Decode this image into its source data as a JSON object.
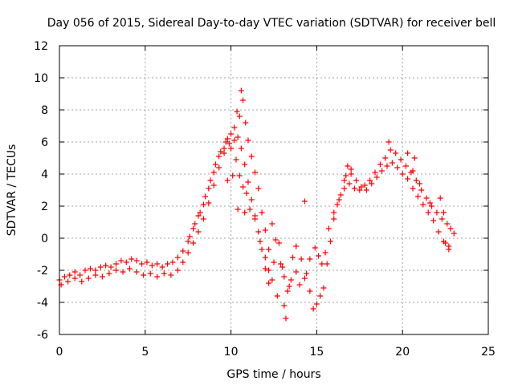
{
  "chart_data": {
    "type": "scatter",
    "title": "Day 056 of 2015, Sidereal Day-to-day VTEC variation (SDTVAR) for receiver bell",
    "xlabel": "GPS time / hours",
    "ylabel": "SDTVAR / TECUs",
    "xlim": [
      0,
      25
    ],
    "ylim": [
      -6,
      12
    ],
    "xticks": [
      0,
      5,
      10,
      15,
      20,
      25
    ],
    "xtick_labels": [
      "0",
      "5",
      "10",
      "15",
      "20",
      "25"
    ],
    "yticks": [
      -6,
      -4,
      -2,
      0,
      2,
      4,
      6,
      8,
      10,
      12
    ],
    "ytick_labels": [
      "-6",
      "-4",
      "-2",
      "0",
      "2",
      "4",
      "6",
      "8",
      "10",
      "12"
    ],
    "grid": true,
    "marker": "plus",
    "series": [
      {
        "name": "satellite track A",
        "color": "#ff0000",
        "points": [
          [
            0.0,
            -2.6
          ],
          [
            0.3,
            -2.4
          ],
          [
            0.6,
            -2.3
          ],
          [
            0.9,
            -2.1
          ],
          [
            1.2,
            -2.3
          ],
          [
            1.5,
            -2.0
          ],
          [
            1.8,
            -1.9
          ],
          [
            2.1,
            -2.0
          ],
          [
            2.4,
            -1.8
          ],
          [
            2.7,
            -1.7
          ],
          [
            3.0,
            -1.8
          ],
          [
            3.3,
            -1.6
          ],
          [
            3.6,
            -1.4
          ],
          [
            3.9,
            -1.5
          ],
          [
            4.2,
            -1.3
          ],
          [
            4.5,
            -1.4
          ],
          [
            4.8,
            -1.6
          ],
          [
            5.1,
            -1.5
          ],
          [
            5.4,
            -1.7
          ],
          [
            5.7,
            -1.6
          ],
          [
            6.0,
            -1.8
          ],
          [
            6.3,
            -1.6
          ],
          [
            6.6,
            -1.5
          ],
          [
            6.9,
            -1.2
          ],
          [
            7.2,
            -0.8
          ],
          [
            7.5,
            -0.2
          ],
          [
            7.8,
            0.6
          ],
          [
            8.1,
            1.4
          ],
          [
            8.4,
            2.1
          ],
          [
            8.7,
            3.1
          ],
          [
            9.0,
            4.1
          ],
          [
            9.3,
            5.1
          ],
          [
            9.6,
            5.6
          ],
          [
            9.9,
            5.9
          ],
          [
            10.2,
            6.1
          ],
          [
            10.4,
            6.3
          ],
          [
            10.6,
            5.6
          ],
          [
            10.8,
            4.6
          ],
          [
            11.0,
            3.5
          ],
          [
            11.2,
            2.4
          ],
          [
            11.4,
            1.4
          ],
          [
            11.6,
            0.4
          ],
          [
            11.8,
            -0.7
          ],
          [
            12.0,
            -1.9
          ],
          [
            12.2,
            -2.8
          ],
          [
            12.5,
            -1.5
          ],
          [
            12.8,
            -0.3
          ],
          [
            13.0,
            -1.8
          ],
          [
            13.1,
            -4.2
          ],
          [
            13.2,
            -5.0
          ],
          [
            13.4,
            -3.0
          ],
          [
            13.6,
            -1.2
          ],
          [
            13.8,
            -0.5
          ],
          [
            14.1,
            -1.3
          ],
          [
            14.4,
            -2.2
          ],
          [
            14.6,
            -3.3
          ],
          [
            14.8,
            -4.4
          ],
          [
            15.0,
            -4.1
          ],
          [
            15.2,
            -3.6
          ],
          [
            15.4,
            -3.1
          ],
          [
            15.6,
            -1.6
          ],
          [
            15.8,
            -0.2
          ],
          [
            16.0,
            1.2
          ],
          [
            16.2,
            2.1
          ],
          [
            16.4,
            2.7
          ],
          [
            16.6,
            3.6
          ],
          [
            16.8,
            4.5
          ],
          [
            17.0,
            4.3
          ],
          [
            17.3,
            3.6
          ],
          [
            17.6,
            3.2
          ],
          [
            17.9,
            3.0
          ],
          [
            18.2,
            3.4
          ],
          [
            18.5,
            3.8
          ],
          [
            18.8,
            4.2
          ],
          [
            19.1,
            4.5
          ],
          [
            19.4,
            4.7
          ],
          [
            19.7,
            4.4
          ],
          [
            20.0,
            4.0
          ],
          [
            20.3,
            3.7
          ],
          [
            20.6,
            3.1
          ],
          [
            20.9,
            2.6
          ],
          [
            21.2,
            2.1
          ],
          [
            21.5,
            1.6
          ],
          [
            21.8,
            1.1
          ],
          [
            22.1,
            0.4
          ],
          [
            22.4,
            -0.2
          ],
          [
            22.7,
            -0.7
          ]
        ]
      },
      {
        "name": "satellite track B",
        "color": "#ff0000",
        "points": [
          [
            0.1,
            -2.9
          ],
          [
            0.5,
            -2.7
          ],
          [
            0.9,
            -2.5
          ],
          [
            1.3,
            -2.7
          ],
          [
            1.7,
            -2.5
          ],
          [
            2.1,
            -2.3
          ],
          [
            2.5,
            -2.4
          ],
          [
            2.9,
            -2.2
          ],
          [
            3.3,
            -2.0
          ],
          [
            3.7,
            -2.1
          ],
          [
            4.1,
            -1.9
          ],
          [
            4.5,
            -2.1
          ],
          [
            4.9,
            -2.3
          ],
          [
            5.3,
            -2.2
          ],
          [
            5.7,
            -2.4
          ],
          [
            6.1,
            -2.2
          ],
          [
            6.5,
            -2.3
          ],
          [
            6.9,
            -2.0
          ],
          [
            7.2,
            -1.5
          ],
          [
            7.5,
            -0.9
          ],
          [
            7.8,
            -0.3
          ],
          [
            8.1,
            0.4
          ],
          [
            8.4,
            1.2
          ],
          [
            8.7,
            2.2
          ],
          [
            9.0,
            3.3
          ],
          [
            9.3,
            4.4
          ],
          [
            9.6,
            5.3
          ],
          [
            9.8,
            6.2
          ],
          [
            10.0,
            6.5
          ],
          [
            10.2,
            6.9
          ],
          [
            10.35,
            7.9
          ],
          [
            10.5,
            7.6
          ],
          [
            10.6,
            9.2
          ],
          [
            10.7,
            8.6
          ],
          [
            10.85,
            7.2
          ],
          [
            11.0,
            6.1
          ],
          [
            11.2,
            5.1
          ],
          [
            11.4,
            4.1
          ],
          [
            11.6,
            3.1
          ],
          [
            11.8,
            1.6
          ],
          [
            12.0,
            0.5
          ],
          [
            12.2,
            -0.7
          ],
          [
            12.4,
            0.9
          ],
          [
            12.6,
            -0.1
          ],
          [
            12.9,
            -1.6
          ],
          [
            13.1,
            -2.4
          ],
          [
            13.3,
            -3.3
          ],
          [
            13.5,
            -2.6
          ],
          [
            13.8,
            -2.1
          ],
          [
            14.0,
            -2.9
          ],
          [
            14.3,
            -2.5
          ],
          [
            14.6,
            -1.3
          ],
          [
            14.9,
            -0.6
          ],
          [
            15.1,
            -1.1
          ],
          [
            15.3,
            -1.6
          ],
          [
            15.5,
            -0.9
          ],
          [
            15.7,
            0.6
          ],
          [
            16.0,
            1.6
          ],
          [
            16.3,
            2.4
          ],
          [
            16.6,
            3.1
          ],
          [
            16.9,
            3.4
          ],
          [
            17.2,
            3.1
          ],
          [
            17.5,
            3.0
          ],
          [
            17.8,
            3.3
          ],
          [
            18.1,
            3.6
          ],
          [
            18.4,
            4.1
          ],
          [
            18.7,
            4.6
          ],
          [
            19.0,
            5.0
          ],
          [
            19.3,
            5.5
          ],
          [
            19.6,
            5.3
          ],
          [
            19.9,
            4.9
          ],
          [
            20.2,
            4.5
          ],
          [
            20.5,
            4.1
          ],
          [
            20.8,
            3.6
          ],
          [
            21.1,
            3.0
          ],
          [
            21.4,
            2.5
          ],
          [
            21.7,
            2.0
          ],
          [
            22.0,
            1.6
          ],
          [
            22.3,
            1.2
          ],
          [
            22.6,
            0.9
          ],
          [
            22.8,
            0.6
          ]
        ]
      },
      {
        "name": "satellite track C",
        "color": "#ff0000",
        "points": [
          [
            7.6,
            0.1
          ],
          [
            7.9,
            0.9
          ],
          [
            8.2,
            1.6
          ],
          [
            8.5,
            2.6
          ],
          [
            8.8,
            3.6
          ],
          [
            9.1,
            4.6
          ],
          [
            9.4,
            5.4
          ],
          [
            9.7,
            6.0
          ],
          [
            10.0,
            5.6
          ],
          [
            10.3,
            4.9
          ],
          [
            10.5,
            3.9
          ],
          [
            10.7,
            3.2
          ],
          [
            10.9,
            2.8
          ],
          [
            11.1,
            1.8
          ],
          [
            11.4,
            1.2
          ],
          [
            11.7,
            -0.2
          ],
          [
            12.0,
            -1.2
          ],
          [
            12.2,
            -2.0
          ],
          [
            12.4,
            -2.6
          ],
          [
            12.7,
            -3.6
          ],
          [
            9.8,
            3.6
          ],
          [
            10.1,
            3.9
          ],
          [
            10.4,
            1.8
          ],
          [
            10.8,
            1.6
          ],
          [
            14.3,
            2.3
          ],
          [
            16.7,
            3.9
          ],
          [
            17.0,
            4.0
          ],
          [
            19.2,
            6.0
          ],
          [
            20.3,
            5.3
          ],
          [
            20.7,
            5.0
          ],
          [
            20.6,
            4.2
          ],
          [
            21.0,
            3.4
          ],
          [
            21.6,
            2.2
          ],
          [
            22.2,
            2.5
          ],
          [
            22.4,
            1.6
          ],
          [
            22.5,
            -0.3
          ],
          [
            22.7,
            -0.5
          ],
          [
            23.0,
            0.3
          ]
        ]
      }
    ]
  }
}
